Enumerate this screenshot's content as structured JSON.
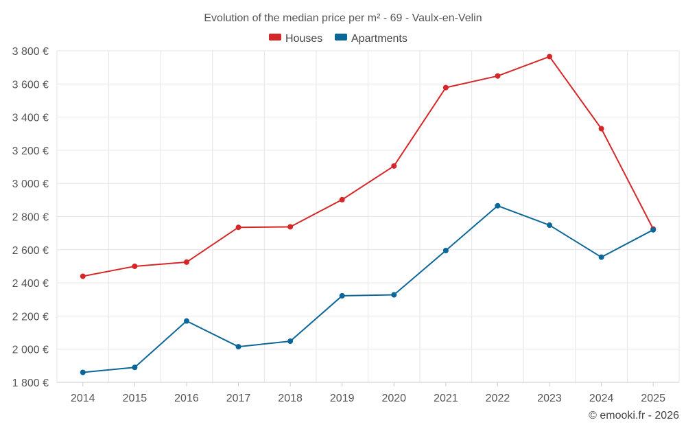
{
  "chart_data": {
    "type": "line",
    "title": "Evolution of the median price per m² - 69 - Vaulx-en-Velin",
    "categories": [
      "2014",
      "2015",
      "2016",
      "2017",
      "2018",
      "2019",
      "2020",
      "2021",
      "2022",
      "2023",
      "2024",
      "2025"
    ],
    "series": [
      {
        "name": "Houses",
        "color": "#d62728",
        "values": [
          2440,
          2500,
          2525,
          2735,
          2738,
          2902,
          3105,
          3578,
          3648,
          3765,
          3330,
          2725
        ]
      },
      {
        "name": "Apartments",
        "color": "#0b6699",
        "values": [
          1860,
          1890,
          2170,
          2015,
          2048,
          2322,
          2328,
          2595,
          2865,
          2748,
          2555,
          2720
        ]
      }
    ],
    "ylim": [
      1800,
      3800
    ],
    "yticks": [
      1800,
      2000,
      2200,
      2400,
      2600,
      2800,
      3000,
      3200,
      3400,
      3600,
      3800
    ],
    "ytick_labels": [
      "1 800 €",
      "2 000 €",
      "2 200 €",
      "2 400 €",
      "2 600 €",
      "2 800 €",
      "3 000 €",
      "3 200 €",
      "3 400 €",
      "3 600 €",
      "3 800 €"
    ],
    "xlabel": "",
    "ylabel": "",
    "grid": true,
    "legend_position": "top-center"
  },
  "credit": "© emooki.fr - 2026"
}
